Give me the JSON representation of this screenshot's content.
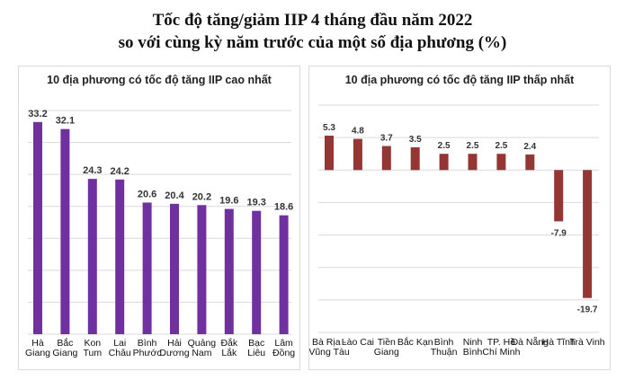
{
  "title_line1": "Tốc độ tăng/giảm IIP 4 tháng đầu năm 2022",
  "title_line2": "so với cùng kỳ năm trước của một số địa phương (%)",
  "chart_data": [
    {
      "type": "bar",
      "title": "10 địa phương có tốc độ tăng IIP cao nhất",
      "color": "#7030a0",
      "categories": [
        "Hà Giang",
        "Bắc Giang",
        "Kon Tum",
        "Lai Châu",
        "Bình Phước",
        "Hải Dương",
        "Quảng Nam",
        "Đắk Lắk",
        "Bạc Liêu",
        "Lâm Đồng"
      ],
      "values": [
        33.2,
        32.1,
        24.3,
        24.2,
        20.6,
        20.4,
        20.2,
        19.6,
        19.3,
        18.6
      ],
      "value_labels": [
        "33.2",
        "32.1",
        "24.3",
        "24.2",
        "20.6",
        "20.4",
        "20.2",
        "19.6",
        "19.3",
        "18.6"
      ],
      "ylim": [
        0,
        35
      ],
      "grid": true,
      "grid_step": 5
    },
    {
      "type": "bar",
      "title": "10 địa phương có tốc độ tăng IIP thấp nhất",
      "color": "#943634",
      "categories": [
        "Bà Rịa - Vũng Tàu",
        "Lào Cai",
        "Tiền Giang",
        "Bắc Kạn",
        "Bình Thuận",
        "Ninh Bình",
        "TP. Hồ Chí Minh",
        "Đà Nẵng",
        "Hà Tĩnh",
        "Trà Vinh"
      ],
      "values": [
        5.3,
        4.8,
        3.7,
        3.5,
        2.5,
        2.5,
        2.5,
        2.4,
        -7.9,
        -19.7
      ],
      "value_labels": [
        "5.3",
        "4.8",
        "3.7",
        "3.5",
        "2.5",
        "2.5",
        "2.5",
        "2.4",
        "-7.9",
        "-19.7"
      ],
      "ylim": [
        -25,
        10
      ],
      "grid": true,
      "grid_step": 5
    }
  ]
}
